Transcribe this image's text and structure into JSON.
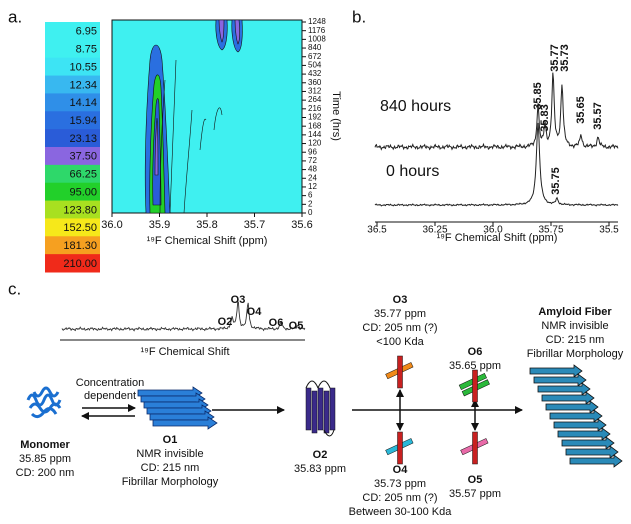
{
  "panels": {
    "a": {
      "label": "a.",
      "colorbar": [
        {
          "label": "6.95",
          "color": "#3ff0f0"
        },
        {
          "label": "8.75",
          "color": "#3ff0f0"
        },
        {
          "label": "10.55",
          "color": "#3de4f4"
        },
        {
          "label": "12.34",
          "color": "#38b8f0"
        },
        {
          "label": "14.14",
          "color": "#2f8fe8"
        },
        {
          "label": "15.94",
          "color": "#2a6fe0"
        },
        {
          "label": "23.13",
          "color": "#2a5cd8"
        },
        {
          "label": "37.50",
          "color": "#8a66e0"
        },
        {
          "label": "66.25",
          "color": "#2ed86a"
        },
        {
          "label": "95.00",
          "color": "#22d02a"
        },
        {
          "label": "123.80",
          "color": "#a8e020"
        },
        {
          "label": "152.50",
          "color": "#f6e81a"
        },
        {
          "label": "181.30",
          "color": "#f6a020"
        },
        {
          "label": "210.00",
          "color": "#f02a1a"
        }
      ],
      "x_ticks": [
        "36.0",
        "35.9",
        "35.8",
        "35.7",
        "35.6"
      ],
      "x_label": "¹⁹F Chemical Shift (ppm)",
      "time_ticks": [
        "1248",
        "1176",
        "1008",
        "840",
        "672",
        "504",
        "432",
        "360",
        "312",
        "264",
        "216",
        "192",
        "168",
        "144",
        "120",
        "96",
        "72",
        "48",
        "24",
        "12",
        "6",
        "2",
        "0"
      ],
      "time_label": "Time (hrs)"
    },
    "b": {
      "label": "b.",
      "x_ticks": [
        "36.5",
        "36.25",
        "36.0",
        "35.75",
        "35.5"
      ],
      "x_label": "¹⁹F Chemical Shift (ppm)",
      "traces": [
        "840 hours",
        "0 hours"
      ],
      "peaks": [
        {
          "label": "35.85",
          "color": "#d8202a"
        },
        {
          "label": "35.83",
          "color": "#7a3aa8"
        },
        {
          "label": "35.77",
          "color": "#f07a1a"
        },
        {
          "label": "35.73",
          "color": "#1aa8e0"
        },
        {
          "label": "35.65",
          "color": "#2aa838"
        },
        {
          "label": "35.57",
          "color": "#e83a78"
        },
        {
          "label": "35.75",
          "color": "#2a3a98"
        }
      ]
    },
    "c": {
      "label": "c.",
      "spectrum_label": "¹⁹F Chemical Shift",
      "spectrum_peaks": [
        "O2",
        "O3",
        "O4",
        "O6",
        "O5"
      ],
      "concentration": [
        "Concentration",
        "dependent"
      ],
      "species": {
        "monomer": [
          "Monomer",
          "35.85 ppm",
          "CD: 200 nm"
        ],
        "o1": [
          "O1",
          "NMR invisible",
          "CD: 215 nm",
          "Fibrillar Morphology"
        ],
        "o2": [
          "O2",
          "35.83 ppm"
        ],
        "o3": [
          "O3",
          "35.77 ppm",
          "CD: 205 nm (?)",
          "<100 Kda"
        ],
        "o4": [
          "O4",
          "35.73 ppm",
          "CD: 205 nm (?)",
          "Between 30-100 Kda"
        ],
        "o5": [
          "O5",
          "35.57 ppm"
        ],
        "o6": [
          "O6",
          "35.65 ppm"
        ],
        "fiber": [
          "Amyloid Fiber",
          "NMR invisible",
          "CD: 215 nm",
          "Fibrillar Morphology"
        ]
      }
    }
  }
}
